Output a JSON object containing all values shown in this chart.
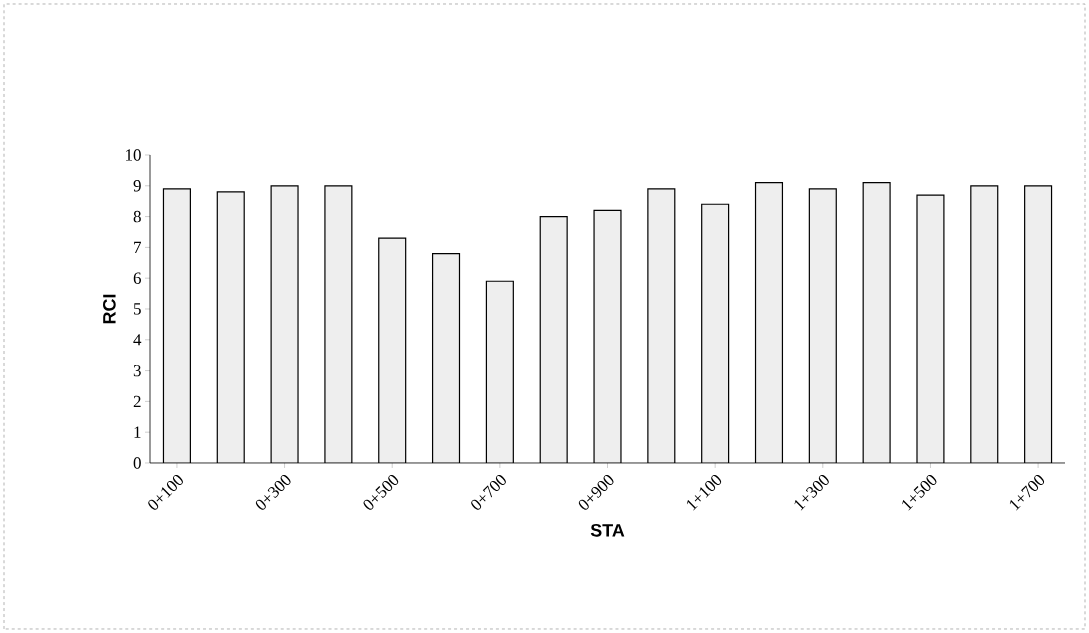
{
  "chart_data": {
    "type": "bar",
    "xlabel": "STA",
    "ylabel": "RCI",
    "categories": [
      "0+100",
      null,
      "0+300",
      null,
      "0+500",
      null,
      "0+700",
      null,
      "0+900",
      null,
      "1+100",
      null,
      "1+300",
      null,
      "1+500",
      null,
      "1+700"
    ],
    "values": [
      8.9,
      8.8,
      9.0,
      9.0,
      7.3,
      6.8,
      5.9,
      8.0,
      8.2,
      8.9,
      8.4,
      9.1,
      8.9,
      9.1,
      8.7,
      9.0,
      9.0
    ],
    "color": "#eeeeee",
    "ylim": [
      0,
      10
    ],
    "yticks": [
      0,
      1,
      2,
      3,
      4,
      5,
      6,
      7,
      8,
      9,
      10
    ],
    "grid": false
  }
}
